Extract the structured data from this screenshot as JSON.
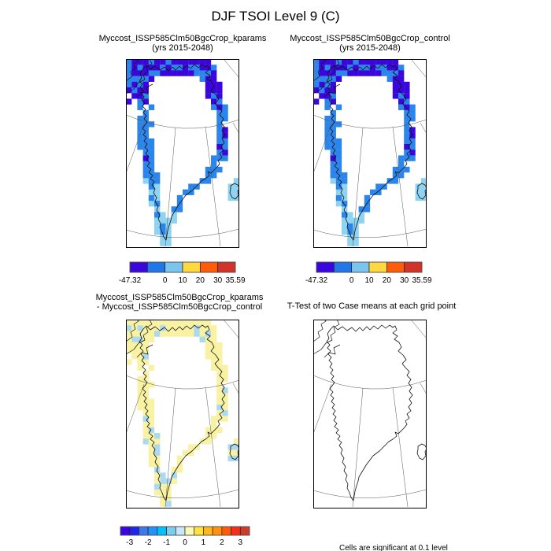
{
  "title": "DJF TSOI Level 9 (C)",
  "panels": {
    "kparams": {
      "line1": "Myccost_ISSP585Clm50BgcCrop_kparams",
      "line2": "(yrs 2015-2048)"
    },
    "control": {
      "line1": "Myccost_ISSP585Clm50BgcCrop_control",
      "line2": "(yrs 2015-2048)"
    },
    "diff": {
      "line1": "Myccost_ISSP585Clm50BgcCrop_kparams",
      "line2": "- Myccost_ISSP585Clm50BgcCrop_control"
    },
    "ttest": {
      "line1": "T-Test of two Case means at each grid point",
      "line2": ""
    }
  },
  "note": "Cells are significant at 0.1 level",
  "colorbars": {
    "mean": {
      "colors": [
        "#3b06dd",
        "#2176e8",
        "#7ac4ef",
        "#ffd93e",
        "#ff5c0a",
        "#d23227"
      ],
      "labels": [
        "-47.32",
        "0",
        "10",
        "20",
        "30",
        "35.59"
      ],
      "label_boundaries": [
        0,
        2,
        3,
        4,
        5,
        6
      ]
    },
    "diff": {
      "colors": [
        "#3b06dd",
        "#2125e8",
        "#3f77e9",
        "#2491fa",
        "#00c1f8",
        "#7fcdec",
        "#c9e7f7",
        "#fcf9b8",
        "#ffe33c",
        "#ffb71e",
        "#ff9114",
        "#ff5a0b",
        "#f3301c",
        "#cd3a2e"
      ],
      "labels": [
        "-3",
        "-2",
        "-1",
        "0",
        "1",
        "2",
        "3"
      ],
      "label_boundaries": [
        1,
        3,
        5,
        7,
        9,
        11,
        13
      ]
    }
  },
  "map_palette": {
    "mean": {
      "indigo": "#3b06dd",
      "medium": "#2b85ea",
      "light": "#8ed3f2"
    },
    "diff": {
      "yellow": "#f8f2a2",
      "blue": "#abd9f0"
    }
  },
  "chart_data": {
    "type": "heatmap",
    "title": "DJF TSOI Level 9 (C)",
    "description": "Four polar-projection map panels of Greenland showing DJF soil temperature (TSOI) at level 9 in degrees C: two CLM case climatologies, their difference, and a t-test significance map.",
    "panels": [
      {
        "name": "Myccost_ISSP585Clm50BgcCrop_kparams",
        "subtitle": "(yrs 2015-2048)",
        "colorbar_min": -47.32,
        "colorbar_max": 35.59,
        "colorbar_ticks": [
          0,
          10,
          20,
          30
        ],
        "dominant_values": "strong negative (deep blue) ring along Greenland coast, light blue in far south and Iceland"
      },
      {
        "name": "Myccost_ISSP585Clm50BgcCrop_control",
        "subtitle": "(yrs 2015-2048)",
        "colorbar_min": -47.32,
        "colorbar_max": 35.59,
        "colorbar_ticks": [
          0,
          10,
          20,
          30
        ],
        "dominant_values": "nearly identical to kparams panel"
      },
      {
        "name": "Myccost_ISSP585Clm50BgcCrop_kparams - Myccost_ISSP585Clm50BgcCrop_control",
        "colorbar_ticks": [
          -3,
          -2,
          -1,
          0,
          1,
          2,
          3
        ],
        "dominant_values": "small positive differences (pale yellow, 0 to 0.5) along coast with scattered small negative (pale blue) cells mainly on the west coast"
      },
      {
        "name": "T-Test of two Case means at each grid point",
        "note": "Cells are significant at 0.1 level",
        "dominant_values": "no significant cells shown (blank map)"
      }
    ],
    "legend_position": "below left panels",
    "grid": "map graticule arcs and meridians, black coastline outline"
  }
}
